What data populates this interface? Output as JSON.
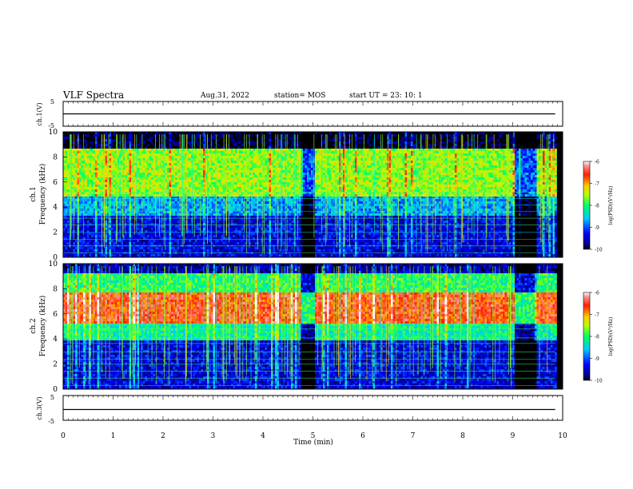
{
  "header": {
    "title": "VLF Spectra",
    "date": "Aug.31, 2022",
    "station": "station= MOS",
    "start": "start  UT  =   23: 10: 1"
  },
  "chart_data": [
    {
      "type": "line",
      "panel": "ch1-voltage",
      "ylabel": "ch.1(V)",
      "ylim": [
        -5,
        5
      ],
      "yticks": [
        "5",
        "-5"
      ],
      "series": [
        {
          "values": [
            0,
            0
          ],
          "x": [
            0,
            9.85
          ]
        }
      ]
    },
    {
      "type": "heatmap",
      "panel": "ch1-spectrogram",
      "ylabel_line1": "ch.1",
      "ylabel_line2": "Frequency (kHz)",
      "ylim": [
        0,
        10
      ],
      "yticks": [
        "0",
        "2",
        "4",
        "6",
        "8",
        "10"
      ],
      "xlim": [
        0,
        10
      ],
      "data_end_min": 9.85,
      "colorbar": {
        "min": -10,
        "max": -6,
        "ticks": [
          "-6",
          "-7",
          "-8",
          "-9",
          "-10"
        ],
        "label": "log(PSD)(V²/Hz)"
      },
      "bands": [
        {
          "from_khz": 8.8,
          "to_khz": 10,
          "level": -10
        },
        {
          "from_khz": 5,
          "to_khz": 8.8,
          "level": -7.6
        },
        {
          "from_khz": 3.5,
          "to_khz": 5,
          "level": -8.7
        },
        {
          "from_khz": 0,
          "to_khz": 3.5,
          "level": -9.4
        }
      ],
      "quiet_intervals_min": [
        [
          4.75,
          5.0
        ],
        [
          9.02,
          9.45
        ]
      ]
    },
    {
      "type": "heatmap",
      "panel": "ch2-spectrogram",
      "ylabel_line1": "ch.2",
      "ylabel_line2": "Frequency (kHz)",
      "ylim": [
        0,
        10
      ],
      "yticks": [
        "0",
        "2",
        "4",
        "6",
        "8",
        "10"
      ],
      "xlim": [
        0,
        10
      ],
      "data_end_min": 9.85,
      "colorbar": {
        "min": -10,
        "max": -6,
        "ticks": [
          "-6",
          "-7",
          "-8",
          "-9",
          "-10"
        ],
        "label": "log(PSD)(V²/Hz)"
      },
      "bands": [
        {
          "from_khz": 9.4,
          "to_khz": 10,
          "level": -9.6
        },
        {
          "from_khz": 7.8,
          "to_khz": 9.4,
          "level": -8.0
        },
        {
          "from_khz": 5.4,
          "to_khz": 7.8,
          "level": -6.6
        },
        {
          "from_khz": 4.0,
          "to_khz": 5.4,
          "level": -8.2
        },
        {
          "from_khz": 0,
          "to_khz": 4.0,
          "level": -9.4
        }
      ],
      "quiet_intervals_min": [
        [
          4.75,
          5.0
        ],
        [
          9.02,
          9.45
        ]
      ]
    },
    {
      "type": "line",
      "panel": "ch3-voltage",
      "ylabel": "ch.3(V)",
      "ylim": [
        -5,
        5
      ],
      "yticks": [
        "5",
        "-5"
      ],
      "xlabel": "Time  (min)",
      "xticks": [
        "0",
        "1",
        "2",
        "3",
        "4",
        "5",
        "6",
        "7",
        "8",
        "9",
        "10"
      ],
      "series": [
        {
          "values": [
            0,
            0
          ],
          "x": [
            0,
            9.85
          ]
        }
      ]
    }
  ],
  "colors": {
    "frame": "#000000",
    "trace": "#000000"
  }
}
